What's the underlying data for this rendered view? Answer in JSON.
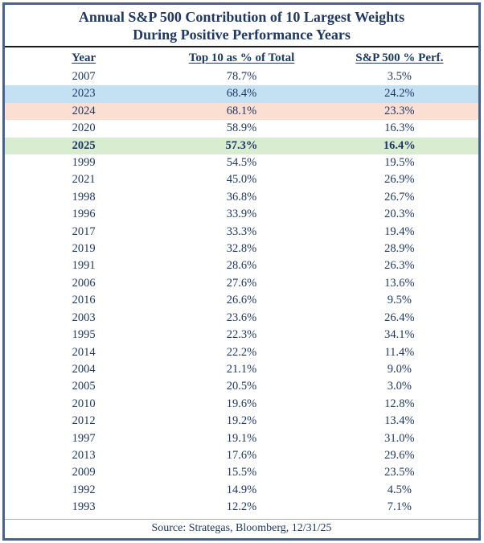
{
  "title": {
    "line1": "Annual S&P 500 Contribution of 10 Largest Weights",
    "line2": "During Positive Performance Years"
  },
  "table": {
    "columns": [
      "Year",
      "Top 10 as % of Total",
      "S&P 500 % Perf."
    ],
    "rows": [
      {
        "year": "2007",
        "top10": "78.7%",
        "perf": "3.5%",
        "highlight": ""
      },
      {
        "year": "2023",
        "top10": "68.4%",
        "perf": "24.2%",
        "highlight": "blue"
      },
      {
        "year": "2024",
        "top10": "68.1%",
        "perf": "23.3%",
        "highlight": "peach"
      },
      {
        "year": "2020",
        "top10": "58.9%",
        "perf": "16.3%",
        "highlight": ""
      },
      {
        "year": "2025",
        "top10": "57.3%",
        "perf": "16.4%",
        "highlight": "green"
      },
      {
        "year": "1999",
        "top10": "54.5%",
        "perf": "19.5%",
        "highlight": ""
      },
      {
        "year": "2021",
        "top10": "45.0%",
        "perf": "26.9%",
        "highlight": ""
      },
      {
        "year": "1998",
        "top10": "36.8%",
        "perf": "26.7%",
        "highlight": ""
      },
      {
        "year": "1996",
        "top10": "33.9%",
        "perf": "20.3%",
        "highlight": ""
      },
      {
        "year": "2017",
        "top10": "33.3%",
        "perf": "19.4%",
        "highlight": ""
      },
      {
        "year": "2019",
        "top10": "32.8%",
        "perf": "28.9%",
        "highlight": ""
      },
      {
        "year": "1991",
        "top10": "28.6%",
        "perf": "26.3%",
        "highlight": ""
      },
      {
        "year": "2006",
        "top10": "27.6%",
        "perf": "13.6%",
        "highlight": ""
      },
      {
        "year": "2016",
        "top10": "26.6%",
        "perf": "9.5%",
        "highlight": ""
      },
      {
        "year": "2003",
        "top10": "23.6%",
        "perf": "26.4%",
        "highlight": ""
      },
      {
        "year": "1995",
        "top10": "22.3%",
        "perf": "34.1%",
        "highlight": ""
      },
      {
        "year": "2014",
        "top10": "22.2%",
        "perf": "11.4%",
        "highlight": ""
      },
      {
        "year": "2004",
        "top10": "21.1%",
        "perf": "9.0%",
        "highlight": ""
      },
      {
        "year": "2005",
        "top10": "20.5%",
        "perf": "3.0%",
        "highlight": ""
      },
      {
        "year": "2010",
        "top10": "19.6%",
        "perf": "12.8%",
        "highlight": ""
      },
      {
        "year": "2012",
        "top10": "19.2%",
        "perf": "13.4%",
        "highlight": ""
      },
      {
        "year": "1997",
        "top10": "19.1%",
        "perf": "31.0%",
        "highlight": ""
      },
      {
        "year": "2013",
        "top10": "17.6%",
        "perf": "29.6%",
        "highlight": ""
      },
      {
        "year": "2009",
        "top10": "15.5%",
        "perf": "23.5%",
        "highlight": ""
      },
      {
        "year": "1992",
        "top10": "14.9%",
        "perf": "4.5%",
        "highlight": ""
      },
      {
        "year": "1993",
        "top10": "12.2%",
        "perf": "7.1%",
        "highlight": ""
      }
    ]
  },
  "source": "Source: Strategas, Bloomberg, 12/31/25",
  "colors": {
    "text_navy": "#1f3864",
    "frame_border": "#44619b",
    "title_rule": "#1a1a1a",
    "highlight_blue": "#c3e1f2",
    "highlight_peach": "#fadfd2",
    "highlight_green": "#d8ecd0"
  },
  "chart_data": {
    "type": "table",
    "title": "Annual S&P 500 Contribution of 10 Largest Weights During Positive Performance Years",
    "columns": [
      "Year",
      "Top 10 as % of Total",
      "S&P 500 % Perf."
    ],
    "categories": [
      2007,
      2023,
      2024,
      2020,
      2025,
      1999,
      2021,
      1998,
      1996,
      2017,
      2019,
      1991,
      2006,
      2016,
      2003,
      1995,
      2014,
      2004,
      2005,
      2010,
      2012,
      1997,
      2013,
      2009,
      1992,
      1993
    ],
    "series": [
      {
        "name": "Top 10 as % of Total",
        "values": [
          78.7,
          68.4,
          68.1,
          58.9,
          57.3,
          54.5,
          45.0,
          36.8,
          33.9,
          33.3,
          32.8,
          28.6,
          27.6,
          26.6,
          23.6,
          22.3,
          22.2,
          21.1,
          20.5,
          19.6,
          19.2,
          19.1,
          17.6,
          15.5,
          14.9,
          12.2
        ]
      },
      {
        "name": "S&P 500 % Perf.",
        "values": [
          3.5,
          24.2,
          23.3,
          16.3,
          16.4,
          19.5,
          26.9,
          26.7,
          20.3,
          19.4,
          28.9,
          26.3,
          13.6,
          9.5,
          26.4,
          34.1,
          11.4,
          9.0,
          3.0,
          12.8,
          13.4,
          31.0,
          29.6,
          23.5,
          4.5,
          7.1
        ]
      }
    ],
    "highlighted_rows": [
      {
        "year": 2023,
        "style": "blue"
      },
      {
        "year": 2024,
        "style": "peach"
      },
      {
        "year": 2025,
        "style": "green-bold"
      }
    ],
    "annotations": [
      "Source: Strategas, Bloomberg, 12/31/25"
    ],
    "sort_order": "descending by Top 10 as % of Total"
  }
}
